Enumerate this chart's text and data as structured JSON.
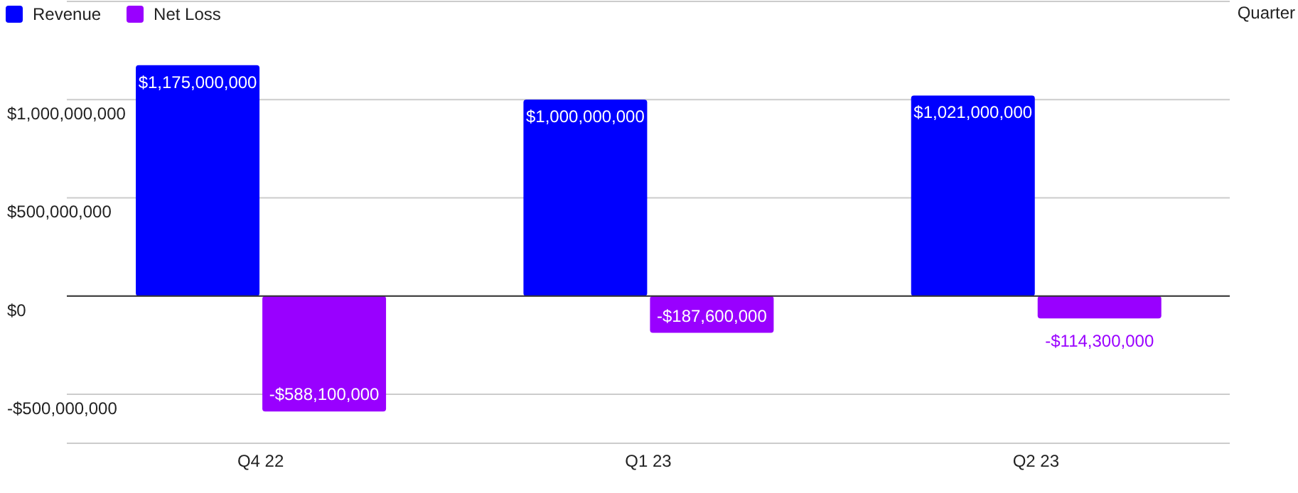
{
  "chart_data": {
    "type": "bar",
    "xlabel": "Quarter",
    "categories": [
      "Q4 22",
      "Q1 23",
      "Q2 23"
    ],
    "series": [
      {
        "name": "Revenue",
        "color": "#0000ff",
        "values": [
          1175000000,
          1000000000,
          1021000000
        ],
        "value_labels": [
          "$1,175,000,000",
          "$1,000,000,000",
          "$1,021,000,000"
        ]
      },
      {
        "name": "Net Loss",
        "color": "#9900ff",
        "values": [
          -588100000,
          -187600000,
          -114300000
        ],
        "value_labels": [
          "-$588,100,000",
          "-$187,600,000",
          "-$114,300,000"
        ]
      }
    ],
    "ylim": [
      -750000000,
      1500000000
    ],
    "yticks": [
      {
        "value": -500000000,
        "label": "-$500,000,000"
      },
      {
        "value": 0,
        "label": "$0"
      },
      {
        "value": 500000000,
        "label": "$500,000,000"
      },
      {
        "value": 1000000000,
        "label": "$1,000,000,000"
      },
      {
        "value": 1500000000,
        "label": null
      }
    ],
    "grid": "y",
    "legend": "top left"
  }
}
